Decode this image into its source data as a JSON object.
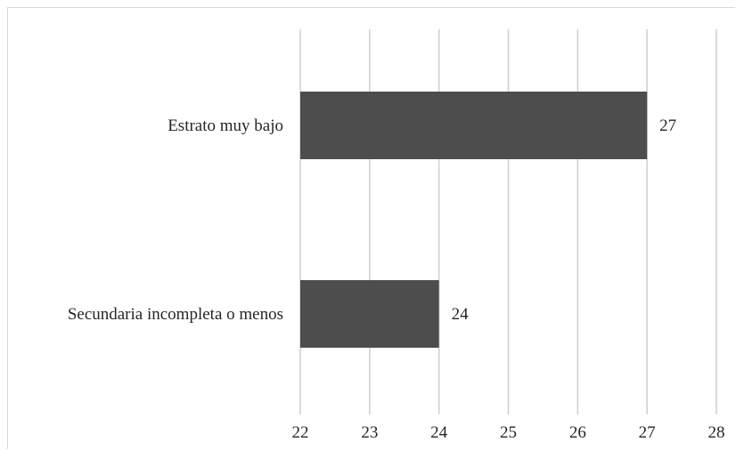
{
  "chart_data": {
    "type": "bar",
    "orientation": "horizontal",
    "categories": [
      "Estrato muy bajo",
      "Secundaria incompleta o menos"
    ],
    "values": [
      27,
      24
    ],
    "data_labels": [
      "27",
      "24"
    ],
    "xlim": [
      22,
      28
    ],
    "x_ticks": [
      "22",
      "23",
      "24",
      "25",
      "26",
      "27",
      "28"
    ],
    "grid": true,
    "colors": {
      "bar": "#4d4d4d",
      "grid": "#cfcfcf"
    },
    "title": "",
    "xlabel": "",
    "ylabel": ""
  }
}
